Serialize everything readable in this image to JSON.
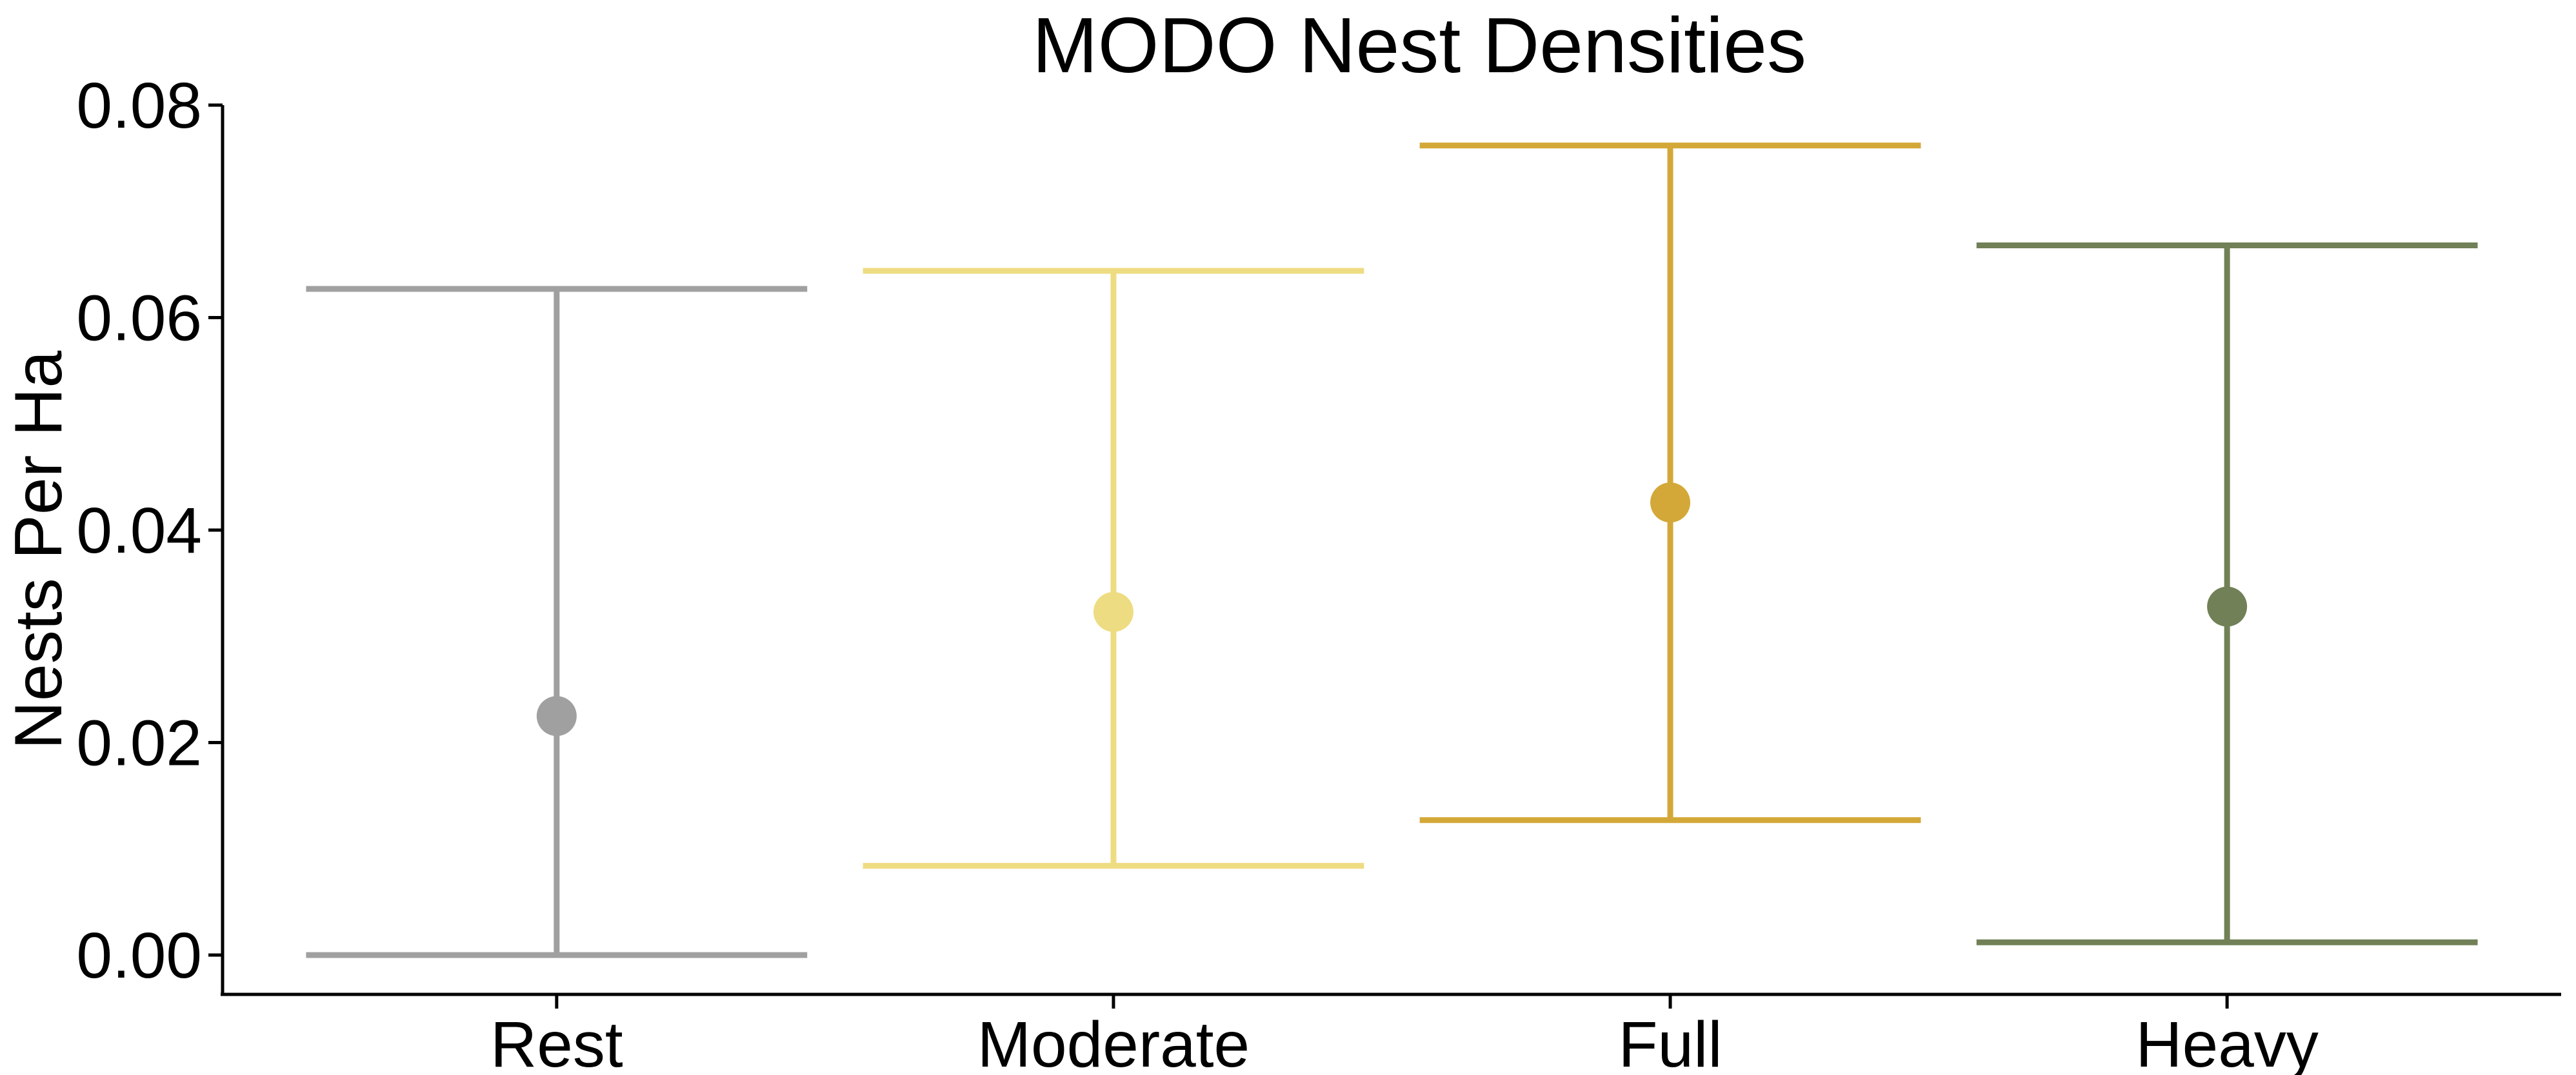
{
  "chart_data": {
    "type": "errorbar",
    "title": "MODO Nest Densities",
    "xlabel": "",
    "ylabel": "Nests Per Ha",
    "ylim": [
      -0.0037,
      0.08
    ],
    "yticks": [
      "0.00",
      "0.02",
      "0.04",
      "0.06",
      "0.08"
    ],
    "grid": false,
    "categories": [
      "Rest",
      "Moderate",
      "Full",
      "Heavy"
    ],
    "points": [
      {
        "category": "Rest",
        "value": 0.0225,
        "lower": 0.0,
        "upper": 0.0627,
        "color": "#a0a0a0"
      },
      {
        "category": "Moderate",
        "value": 0.0323,
        "lower": 0.0084,
        "upper": 0.0644,
        "color": "#eedc82"
      },
      {
        "category": "Full",
        "value": 0.0426,
        "lower": 0.0127,
        "upper": 0.0762,
        "color": "#d4a838"
      },
      {
        "category": "Heavy",
        "value": 0.0328,
        "lower": 0.0012,
        "upper": 0.0668,
        "color": "#718056"
      }
    ]
  }
}
